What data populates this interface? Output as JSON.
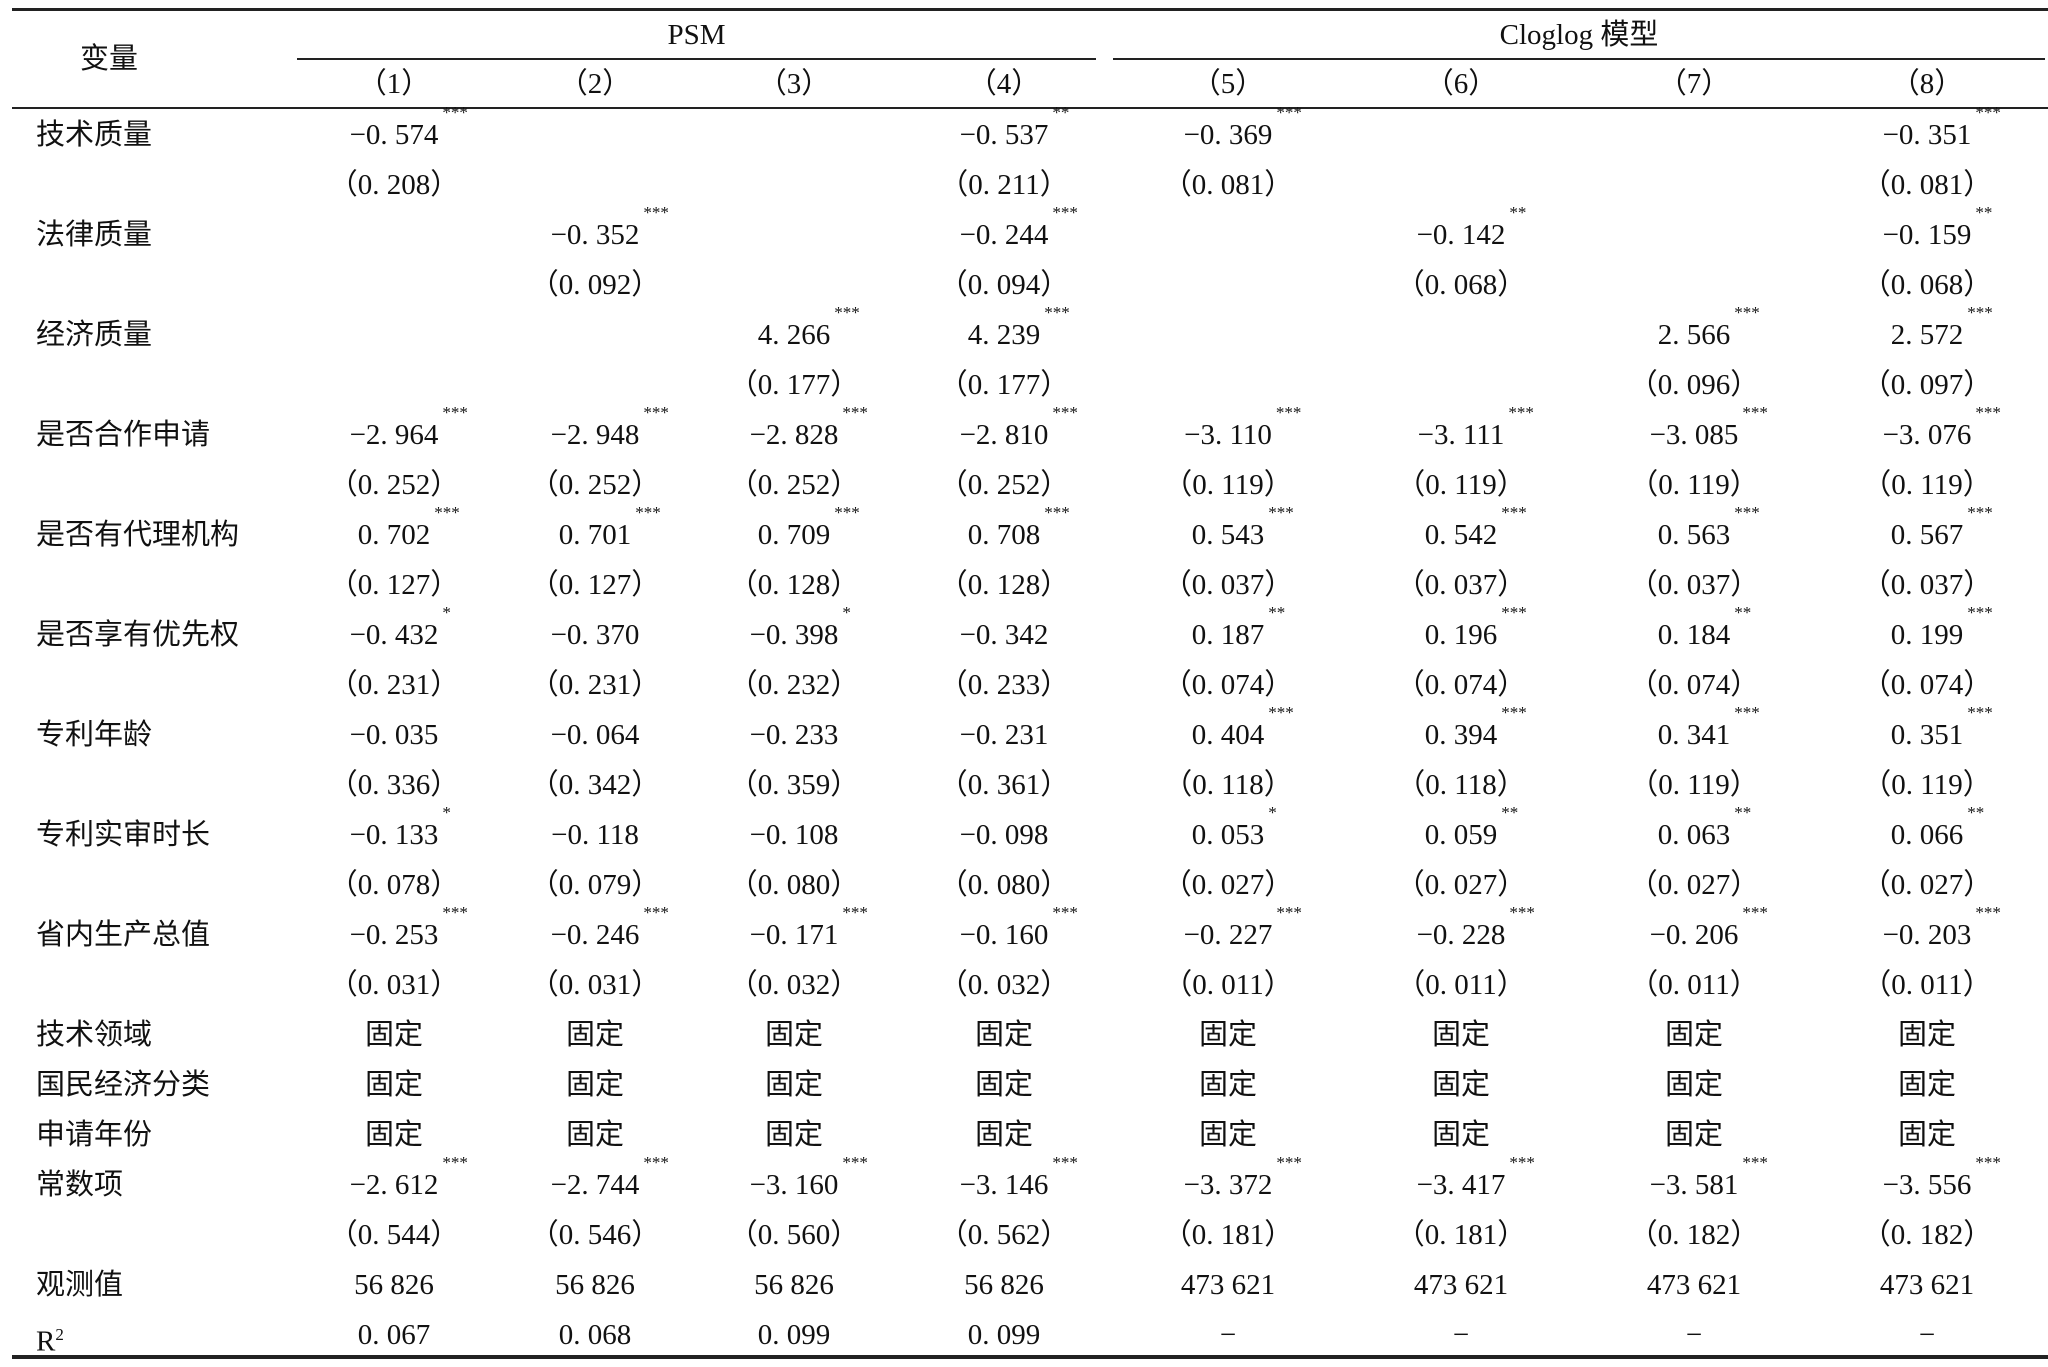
{
  "header": {
    "variable_label": "变量",
    "group_psm": "PSM",
    "group_cloglog": "Cloglog 模型",
    "columns": [
      "（1）",
      "（2）",
      "（3）",
      "（4）",
      "（5）",
      "（6）",
      "（7）",
      "（8）"
    ]
  },
  "variables": [
    {
      "label": "技术质量",
      "coef": [
        [
          "−0. 574",
          "***"
        ],
        [
          "",
          ""
        ],
        [
          "",
          ""
        ],
        [
          "−0. 537",
          "**"
        ],
        [
          "−0. 369",
          "***"
        ],
        [
          "",
          ""
        ],
        [
          "",
          ""
        ],
        [
          "−0. 351",
          "***"
        ]
      ],
      "se": [
        "（0. 208）",
        "",
        "",
        "（0. 211）",
        "（0. 081）",
        "",
        "",
        "（0. 081）"
      ]
    },
    {
      "label": "法律质量",
      "coef": [
        [
          "",
          ""
        ],
        [
          "−0. 352",
          "***"
        ],
        [
          "",
          ""
        ],
        [
          "−0. 244",
          "***"
        ],
        [
          "",
          ""
        ],
        [
          "−0. 142",
          "**"
        ],
        [
          "",
          ""
        ],
        [
          "−0. 159",
          "**"
        ]
      ],
      "se": [
        "",
        "（0. 092）",
        "",
        "（0. 094）",
        "",
        "（0. 068）",
        "",
        "（0. 068）"
      ]
    },
    {
      "label": "经济质量",
      "coef": [
        [
          "",
          ""
        ],
        [
          "",
          ""
        ],
        [
          "4. 266",
          "***"
        ],
        [
          "4. 239",
          "***"
        ],
        [
          "",
          ""
        ],
        [
          "",
          ""
        ],
        [
          "2. 566",
          "***"
        ],
        [
          "2. 572",
          "***"
        ]
      ],
      "se": [
        "",
        "",
        "（0. 177）",
        "（0. 177）",
        "",
        "",
        "（0. 096）",
        "（0. 097）"
      ]
    },
    {
      "label": "是否合作申请",
      "coef": [
        [
          "−2. 964",
          "***"
        ],
        [
          "−2. 948",
          "***"
        ],
        [
          "−2. 828",
          "***"
        ],
        [
          "−2. 810",
          "***"
        ],
        [
          "−3. 110",
          "***"
        ],
        [
          "−3. 111",
          "***"
        ],
        [
          "−3. 085",
          "***"
        ],
        [
          "−3. 076",
          "***"
        ]
      ],
      "se": [
        "（0. 252）",
        "（0. 252）",
        "（0. 252）",
        "（0. 252）",
        "（0. 119）",
        "（0. 119）",
        "（0. 119）",
        "（0. 119）"
      ]
    },
    {
      "label": "是否有代理机构",
      "coef": [
        [
          "0. 702",
          "***"
        ],
        [
          "0. 701",
          "***"
        ],
        [
          "0. 709",
          "***"
        ],
        [
          "0. 708",
          "***"
        ],
        [
          "0. 543",
          "***"
        ],
        [
          "0. 542",
          "***"
        ],
        [
          "0. 563",
          "***"
        ],
        [
          "0. 567",
          "***"
        ]
      ],
      "se": [
        "（0. 127）",
        "（0. 127）",
        "（0. 128）",
        "（0. 128）",
        "（0. 037）",
        "（0. 037）",
        "（0. 037）",
        "（0. 037）"
      ]
    },
    {
      "label": "是否享有优先权",
      "coef": [
        [
          "−0. 432",
          "*"
        ],
        [
          "−0. 370",
          ""
        ],
        [
          "−0. 398",
          "*"
        ],
        [
          "−0. 342",
          ""
        ],
        [
          "0. 187",
          "**"
        ],
        [
          "0. 196",
          "***"
        ],
        [
          "0. 184",
          "**"
        ],
        [
          "0. 199",
          "***"
        ]
      ],
      "se": [
        "（0. 231）",
        "（0. 231）",
        "（0. 232）",
        "（0. 233）",
        "（0. 074）",
        "（0. 074）",
        "（0. 074）",
        "（0. 074）"
      ]
    },
    {
      "label": "专利年龄",
      "coef": [
        [
          "−0. 035",
          ""
        ],
        [
          "−0. 064",
          ""
        ],
        [
          "−0. 233",
          ""
        ],
        [
          "−0. 231",
          ""
        ],
        [
          "0. 404",
          "***"
        ],
        [
          "0. 394",
          "***"
        ],
        [
          "0. 341",
          "***"
        ],
        [
          "0. 351",
          "***"
        ]
      ],
      "se": [
        "（0. 336）",
        "（0. 342）",
        "（0. 359）",
        "（0. 361）",
        "（0. 118）",
        "（0. 118）",
        "（0. 119）",
        "（0. 119）"
      ]
    },
    {
      "label": "专利实审时长",
      "coef": [
        [
          "−0. 133",
          "*"
        ],
        [
          "−0. 118",
          ""
        ],
        [
          "−0. 108",
          ""
        ],
        [
          "−0. 098",
          ""
        ],
        [
          "0. 053",
          "*"
        ],
        [
          "0. 059",
          "**"
        ],
        [
          "0. 063",
          "**"
        ],
        [
          "0. 066",
          "**"
        ]
      ],
      "se": [
        "（0. 078）",
        "（0. 079）",
        "（0. 080）",
        "（0. 080）",
        "（0. 027）",
        "（0. 027）",
        "（0. 027）",
        "（0. 027）"
      ]
    },
    {
      "label": "省内生产总值",
      "coef": [
        [
          "−0. 253",
          "***"
        ],
        [
          "−0. 246",
          "***"
        ],
        [
          "−0. 171",
          "***"
        ],
        [
          "−0. 160",
          "***"
        ],
        [
          "−0. 227",
          "***"
        ],
        [
          "−0. 228",
          "***"
        ],
        [
          "−0. 206",
          "***"
        ],
        [
          "−0. 203",
          "***"
        ]
      ],
      "se": [
        "（0. 031）",
        "（0. 031）",
        "（0. 032）",
        "（0. 032）",
        "（0. 011）",
        "（0. 011）",
        "（0. 011）",
        "（0. 011）"
      ]
    }
  ],
  "fixed_effects": [
    {
      "label": "技术领域",
      "values": [
        "固定",
        "固定",
        "固定",
        "固定",
        "固定",
        "固定",
        "固定",
        "固定"
      ]
    },
    {
      "label": "国民经济分类",
      "values": [
        "固定",
        "固定",
        "固定",
        "固定",
        "固定",
        "固定",
        "固定",
        "固定"
      ]
    },
    {
      "label": "申请年份",
      "values": [
        "固定",
        "固定",
        "固定",
        "固定",
        "固定",
        "固定",
        "固定",
        "固定"
      ]
    }
  ],
  "constant": {
    "label": "常数项",
    "coef": [
      [
        "−2. 612",
        "***"
      ],
      [
        "−2. 744",
        "***"
      ],
      [
        "−3. 160",
        "***"
      ],
      [
        "−3. 146",
        "***"
      ],
      [
        "−3. 372",
        "***"
      ],
      [
        "−3. 417",
        "***"
      ],
      [
        "−3. 581",
        "***"
      ],
      [
        "−3. 556",
        "***"
      ]
    ],
    "se": [
      "（0. 544）",
      "（0. 546）",
      "（0. 560）",
      "（0. 562）",
      "（0. 181）",
      "（0. 181）",
      "（0. 182）",
      "（0. 182）"
    ]
  },
  "observations": {
    "label": "观测值",
    "values": [
      "56 826",
      "56 826",
      "56 826",
      "56 826",
      "473 621",
      "473 621",
      "473 621",
      "473 621"
    ]
  },
  "r2": {
    "label": "R",
    "label_sup": "2",
    "values": [
      "0. 067",
      "0. 068",
      "0. 099",
      "0. 099",
      "−",
      "−",
      "−",
      "−"
    ]
  }
}
